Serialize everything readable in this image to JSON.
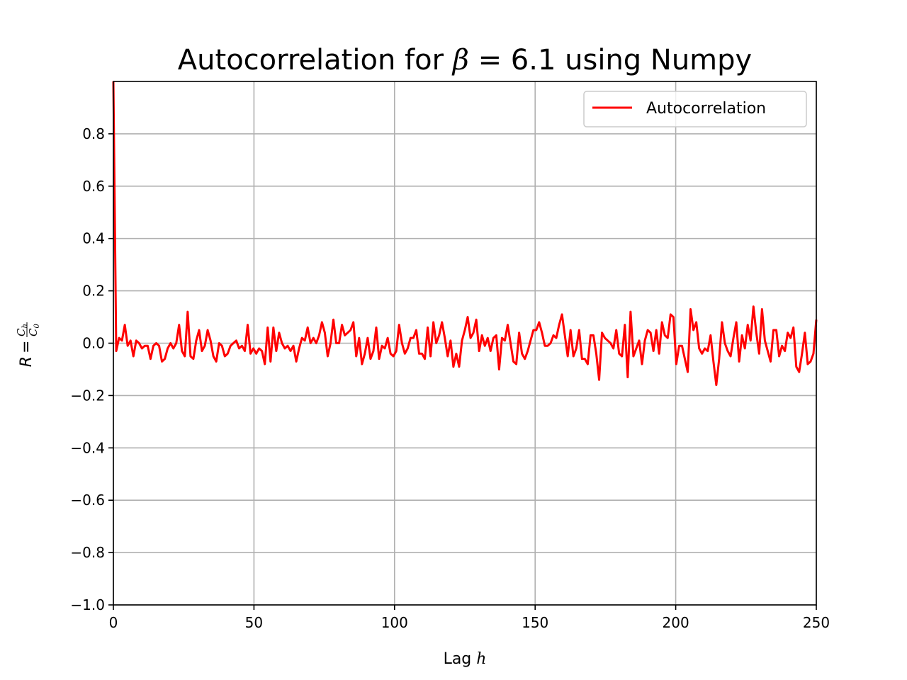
{
  "chart_data": {
    "type": "line",
    "title_parts": {
      "prefix": "Autocorrelation for ",
      "symbol": "β",
      "equals": " = 6.1 using Numpy"
    },
    "xlabel_parts": {
      "text": "Lag ",
      "var": "h"
    },
    "ylabel_parts": {
      "lhs": "R",
      "eq": " = ",
      "num": "C",
      "num_sub": "h",
      "den": "C",
      "den_sub": "0"
    },
    "xlim": [
      0,
      250
    ],
    "ylim": [
      -1.0,
      1.0
    ],
    "xticks": [
      0,
      50,
      100,
      150,
      200,
      250
    ],
    "xtick_labels": [
      "0",
      "50",
      "100",
      "150",
      "200",
      "250"
    ],
    "yticks": [
      -1.0,
      -0.8,
      -0.6,
      -0.4,
      -0.2,
      0.0,
      0.2,
      0.4,
      0.6,
      0.8
    ],
    "ytick_labels": [
      "−1.0",
      "−0.8",
      "−0.6",
      "−0.4",
      "−0.2",
      "0.0",
      "0.2",
      "0.4",
      "0.6",
      "0.8"
    ],
    "grid": true,
    "legend_position": "upper right",
    "series": [
      {
        "name": "Autocorrelation",
        "color": "#ff0000",
        "values": [
          1.0,
          -0.03,
          0.02,
          0.01,
          0.07,
          -0.01,
          0.01,
          -0.05,
          0.01,
          0.0,
          -0.02,
          -0.01,
          -0.01,
          -0.06,
          -0.01,
          0.0,
          -0.01,
          -0.07,
          -0.06,
          -0.02,
          0.0,
          -0.02,
          0.0,
          0.07,
          -0.03,
          -0.05,
          0.12,
          -0.05,
          -0.06,
          0.01,
          0.05,
          -0.03,
          -0.01,
          0.05,
          0.01,
          -0.05,
          -0.07,
          0.0,
          -0.01,
          -0.05,
          -0.04,
          -0.01,
          0.0,
          0.01,
          -0.02,
          -0.01,
          -0.03,
          0.07,
          -0.04,
          -0.02,
          -0.04,
          -0.02,
          -0.03,
          -0.08,
          0.06,
          -0.07,
          0.06,
          -0.03,
          0.04,
          0.0,
          -0.02,
          -0.01,
          -0.03,
          -0.01,
          -0.07,
          -0.02,
          0.02,
          0.01,
          0.06,
          0.0,
          0.02,
          0.0,
          0.03,
          0.08,
          0.04,
          -0.05,
          0.0,
          0.09,
          0.0,
          0.0,
          0.07,
          0.03,
          0.04,
          0.05,
          0.08,
          -0.05,
          0.02,
          -0.08,
          -0.04,
          0.02,
          -0.06,
          -0.03,
          0.06,
          -0.06,
          -0.01,
          -0.02,
          0.02,
          -0.04,
          -0.05,
          -0.03,
          0.07,
          0.0,
          -0.04,
          -0.02,
          0.02,
          0.02,
          0.05,
          -0.04,
          -0.04,
          -0.06,
          0.06,
          -0.05,
          0.08,
          0.0,
          0.03,
          0.08,
          0.02,
          -0.05,
          0.01,
          -0.09,
          -0.04,
          -0.09,
          0.01,
          0.05,
          0.1,
          0.02,
          0.04,
          0.09,
          -0.03,
          0.03,
          -0.01,
          0.02,
          -0.03,
          0.02,
          0.03,
          -0.1,
          0.02,
          0.01,
          0.07,
          0.0,
          -0.07,
          -0.08,
          0.04,
          -0.04,
          -0.06,
          -0.03,
          0.01,
          0.05,
          0.05,
          0.08,
          0.04,
          -0.01,
          -0.01,
          0.0,
          0.03,
          0.02,
          0.07,
          0.11,
          0.03,
          -0.05,
          0.05,
          -0.05,
          -0.02,
          0.05,
          -0.06,
          -0.06,
          -0.08,
          0.03,
          0.03,
          -0.04,
          -0.14,
          0.04,
          0.02,
          0.01,
          0.0,
          -0.02,
          0.05,
          -0.04,
          -0.05,
          0.07,
          -0.13,
          0.12,
          -0.05,
          -0.02,
          0.01,
          -0.08,
          0.01,
          0.05,
          0.04,
          -0.03,
          0.05,
          -0.04,
          0.08,
          0.03,
          0.02,
          0.11,
          0.1,
          -0.08,
          -0.01,
          -0.01,
          -0.06,
          -0.11,
          0.13,
          0.05,
          0.08,
          -0.02,
          -0.04,
          -0.02,
          -0.03,
          0.03,
          -0.07,
          -0.16,
          -0.06,
          0.08,
          0.0,
          -0.03,
          -0.05,
          0.02,
          0.08,
          -0.07,
          0.03,
          -0.02,
          0.07,
          0.01,
          0.14,
          0.04,
          -0.04,
          0.13,
          0.01,
          -0.03,
          -0.07,
          0.05,
          0.05,
          -0.05,
          -0.01,
          -0.03,
          0.04,
          0.02,
          0.06,
          -0.09,
          -0.11,
          -0.04,
          0.04,
          -0.08,
          -0.07,
          -0.04,
          0.09
        ]
      }
    ]
  }
}
